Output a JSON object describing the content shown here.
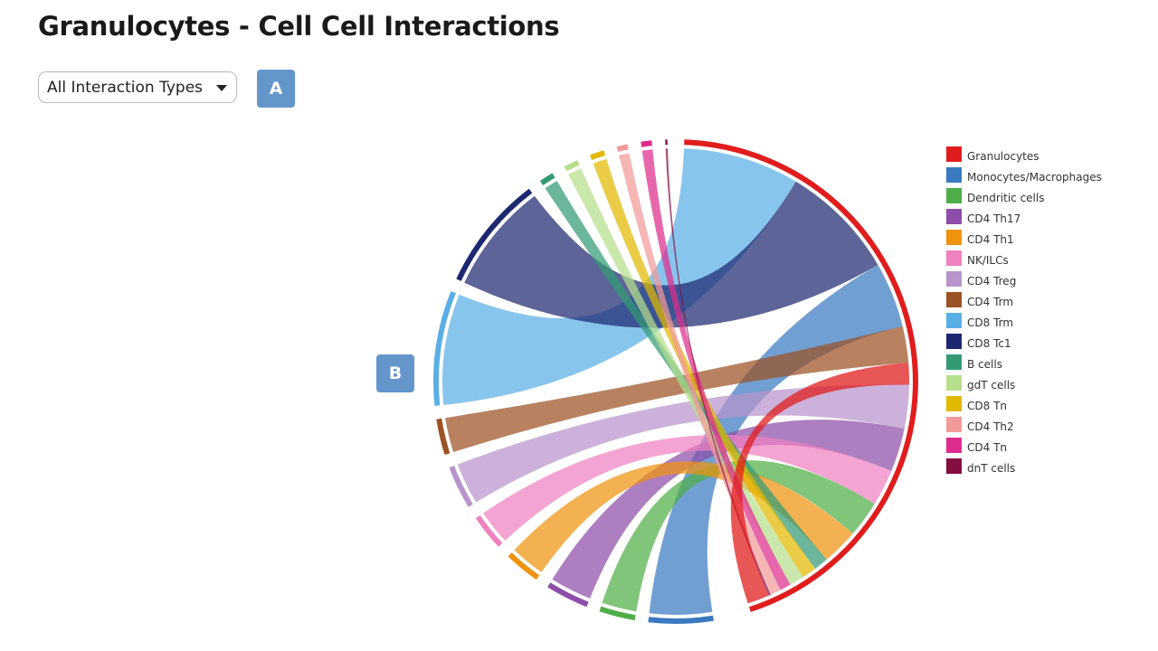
{
  "page": {
    "title": "Granulocytes - Cell Cell Interactions",
    "dropdown": {
      "selected": "All Interaction Types",
      "caret_icon": "caret-down-icon"
    },
    "badges": [
      {
        "label": "A",
        "color": "#6496cc"
      },
      {
        "label": "B",
        "color": "#6496cc"
      }
    ]
  },
  "chart_data": {
    "type": "chord",
    "focus_group": "Granulocytes",
    "groups": [
      {
        "name": "Granulocytes",
        "color": "#e01d1d"
      },
      {
        "name": "Monocytes/Macrophages",
        "color": "#3a7ac0"
      },
      {
        "name": "Dendritic cells",
        "color": "#4fae47"
      },
      {
        "name": "CD4 Th17",
        "color": "#8d4da8"
      },
      {
        "name": "CD4 Th1",
        "color": "#f0930e"
      },
      {
        "name": "NK/ILCs",
        "color": "#f081c0"
      },
      {
        "name": "CD4 Treg",
        "color": "#b894cc"
      },
      {
        "name": "CD4 Trm",
        "color": "#9c5224"
      },
      {
        "name": "CD8 Trm",
        "color": "#5aaee6"
      },
      {
        "name": "CD8 Tc1",
        "color": "#1d2870"
      },
      {
        "name": "B cells",
        "color": "#339b74"
      },
      {
        "name": "gdT cells",
        "color": "#b6df8c"
      },
      {
        "name": "CD8 Tn",
        "color": "#e2b800"
      },
      {
        "name": "CD4 Th2",
        "color": "#f29a9a"
      },
      {
        "name": "CD4 Tn",
        "color": "#de2c8e"
      },
      {
        "name": "dnT cells",
        "color": "#850d3f"
      }
    ],
    "interactions_with_focus": [
      {
        "partner": "Granulocytes",
        "value": 6
      },
      {
        "partner": "Monocytes/Macrophages",
        "value": 9
      },
      {
        "partner": "Dendritic cells",
        "value": 5
      },
      {
        "partner": "CD4 Th17",
        "value": 6
      },
      {
        "partner": "CD4 Th1",
        "value": 5
      },
      {
        "partner": "NK/ILCs",
        "value": 5
      },
      {
        "partner": "CD4 Treg",
        "value": 6
      },
      {
        "partner": "CD4 Trm",
        "value": 5
      },
      {
        "partner": "CD8 Trm",
        "value": 16
      },
      {
        "partner": "CD8 Tc1",
        "value": 16
      },
      {
        "partner": "B cells",
        "value": 2
      },
      {
        "partner": "gdT cells",
        "value": 2
      },
      {
        "partner": "CD8 Tn",
        "value": 2
      },
      {
        "partner": "CD4 Th2",
        "value": 1.5
      },
      {
        "partner": "CD4 Tn",
        "value": 1.5
      },
      {
        "partner": "dnT cells",
        "value": 0.3
      }
    ],
    "legend_position": "right"
  }
}
